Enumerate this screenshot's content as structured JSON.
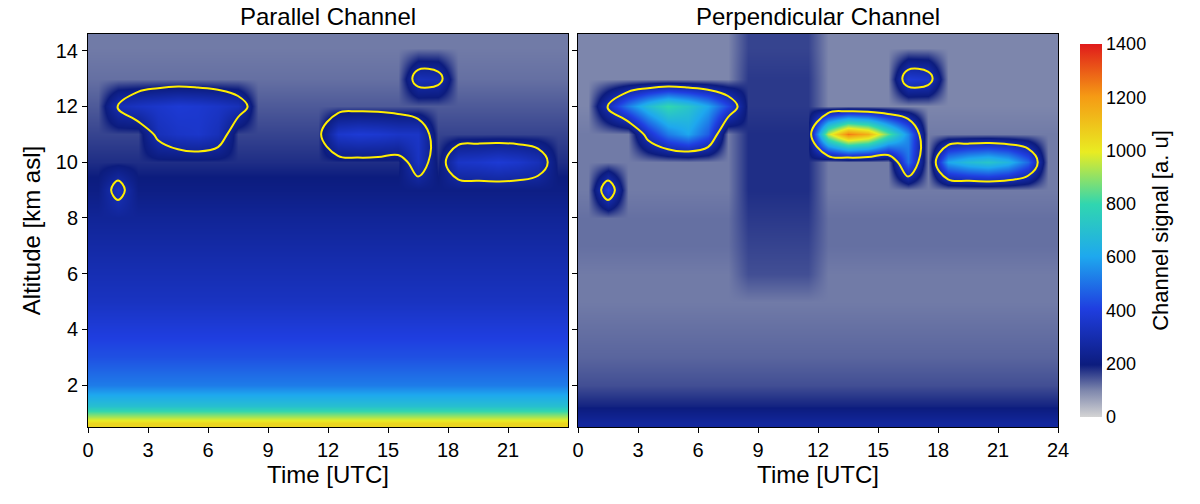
{
  "chart_data": [
    {
      "type": "heatmap",
      "title": "Parallel Channel",
      "x_label": "Time [UTC]",
      "y_label": "Altitude [km asl]",
      "x": [
        0.5,
        1.5,
        2.5,
        3.5,
        4.5,
        5.5,
        6.5,
        7.5,
        8.5,
        9.5,
        10.5,
        11.5,
        12.5,
        13.5,
        14.5,
        15.5,
        16.5,
        17.5,
        18.5,
        19.5,
        20.5,
        21.5,
        22.5,
        23.5
      ],
      "y": [
        0.65,
        1.25,
        2,
        3,
        4,
        5,
        6,
        7,
        8,
        9,
        10,
        11,
        12,
        13,
        14.1
      ],
      "z": [
        [
          1050,
          1050,
          1050,
          1050,
          1050,
          1050,
          1050,
          1050,
          1050,
          1050,
          1050,
          1050,
          1050,
          1050,
          1050,
          1050,
          1050,
          1050,
          1050,
          1050,
          1050,
          1050,
          1050,
          1050
        ],
        [
          700,
          700,
          700,
          700,
          700,
          700,
          700,
          700,
          700,
          700,
          700,
          700,
          700,
          700,
          700,
          700,
          700,
          700,
          700,
          700,
          700,
          700,
          700,
          700
        ],
        [
          520,
          520,
          520,
          520,
          520,
          520,
          520,
          520,
          520,
          520,
          520,
          520,
          520,
          520,
          520,
          520,
          520,
          520,
          520,
          520,
          520,
          520,
          520,
          520
        ],
        [
          440,
          440,
          440,
          440,
          440,
          440,
          440,
          440,
          440,
          440,
          440,
          440,
          440,
          440,
          440,
          440,
          440,
          440,
          440,
          440,
          440,
          440,
          440,
          440
        ],
        [
          390,
          390,
          390,
          390,
          390,
          390,
          390,
          390,
          390,
          390,
          390,
          390,
          390,
          390,
          390,
          390,
          390,
          390,
          390,
          390,
          390,
          390,
          390,
          390
        ],
        [
          340,
          340,
          340,
          340,
          340,
          340,
          340,
          340,
          340,
          340,
          340,
          340,
          340,
          340,
          340,
          340,
          340,
          340,
          340,
          340,
          340,
          340,
          340,
          340
        ],
        [
          310,
          310,
          310,
          310,
          310,
          310,
          310,
          310,
          310,
          310,
          310,
          310,
          310,
          310,
          310,
          310,
          310,
          310,
          310,
          310,
          310,
          310,
          310,
          310
        ],
        [
          280,
          280,
          280,
          280,
          280,
          280,
          280,
          280,
          280,
          280,
          280,
          280,
          280,
          280,
          280,
          280,
          280,
          280,
          280,
          280,
          280,
          280,
          280,
          280
        ],
        [
          250,
          250,
          250,
          250,
          250,
          250,
          250,
          250,
          250,
          250,
          250,
          250,
          250,
          250,
          250,
          250,
          250,
          250,
          250,
          250,
          250,
          250,
          250,
          250
        ],
        [
          210,
          330,
          210,
          210,
          210,
          210,
          210,
          210,
          210,
          210,
          210,
          210,
          210,
          210,
          210,
          210,
          210,
          210,
          210,
          210,
          210,
          210,
          210,
          210
        ],
        [
          180,
          180,
          180,
          180,
          180,
          180,
          180,
          180,
          180,
          180,
          180,
          180,
          180,
          180,
          180,
          180,
          340,
          180,
          350,
          360,
          380,
          360,
          320,
          180
        ],
        [
          160,
          160,
          160,
          320,
          350,
          360,
          320,
          160,
          160,
          160,
          160,
          160,
          360,
          380,
          370,
          350,
          350,
          160,
          160,
          160,
          160,
          160,
          160,
          160
        ],
        [
          140,
          310,
          340,
          360,
          380,
          370,
          350,
          320,
          140,
          140,
          140,
          140,
          140,
          140,
          140,
          140,
          140,
          140,
          140,
          140,
          140,
          140,
          140,
          140
        ],
        [
          120,
          120,
          120,
          120,
          120,
          120,
          120,
          120,
          120,
          120,
          120,
          120,
          120,
          120,
          120,
          120,
          320,
          310,
          120,
          120,
          120,
          120,
          120,
          120
        ],
        [
          110,
          110,
          110,
          110,
          110,
          110,
          110,
          110,
          110,
          110,
          110,
          110,
          110,
          110,
          110,
          110,
          110,
          110,
          110,
          110,
          110,
          110,
          110,
          110
        ]
      ],
      "xlim": [
        0,
        24
      ],
      "xticks": [
        0,
        3,
        6,
        9,
        12,
        15,
        18,
        21
      ],
      "ylim": [
        0.5,
        14.6
      ],
      "yticks": [
        2,
        4,
        6,
        8,
        10,
        12,
        14
      ]
    },
    {
      "type": "heatmap",
      "title": "Perpendicular Channel",
      "x_label": "Time [UTC]",
      "x": [
        0.5,
        1.5,
        2.5,
        3.5,
        4.5,
        5.5,
        6.5,
        7.5,
        8.5,
        9.5,
        10.5,
        11.5,
        12.5,
        13.5,
        14.5,
        15.5,
        16.5,
        17.5,
        18.5,
        19.5,
        20.5,
        21.5,
        22.5,
        23.5
      ],
      "y": [
        0.65,
        1.25,
        2,
        3,
        4,
        5,
        6,
        7,
        8,
        9,
        10,
        11,
        12,
        13,
        14.1
      ],
      "z": [
        [
          260,
          260,
          260,
          260,
          260,
          260,
          260,
          260,
          260,
          260,
          260,
          260,
          260,
          260,
          260,
          260,
          260,
          260,
          260,
          260,
          260,
          260,
          260,
          260
        ],
        [
          190,
          190,
          190,
          190,
          190,
          190,
          190,
          190,
          190,
          190,
          190,
          190,
          190,
          190,
          190,
          190,
          190,
          190,
          190,
          190,
          190,
          190,
          190,
          190
        ],
        [
          150,
          150,
          150,
          150,
          150,
          150,
          150,
          150,
          150,
          150,
          150,
          150,
          150,
          150,
          150,
          150,
          150,
          150,
          150,
          150,
          150,
          150,
          150,
          150
        ],
        [
          130,
          130,
          130,
          130,
          130,
          130,
          130,
          130,
          130,
          130,
          130,
          130,
          130,
          130,
          130,
          130,
          130,
          130,
          130,
          130,
          130,
          130,
          130,
          130
        ],
        [
          120,
          120,
          120,
          120,
          120,
          120,
          120,
          120,
          120,
          120,
          120,
          120,
          120,
          120,
          120,
          120,
          120,
          120,
          120,
          120,
          120,
          120,
          120,
          120
        ],
        [
          110,
          110,
          110,
          110,
          110,
          110,
          110,
          110,
          110,
          110,
          110,
          110,
          110,
          110,
          110,
          110,
          110,
          110,
          110,
          110,
          110,
          110,
          110,
          110
        ],
        [
          110,
          110,
          110,
          110,
          110,
          110,
          110,
          110,
          150,
          150,
          150,
          150,
          110,
          110,
          110,
          110,
          110,
          110,
          110,
          110,
          110,
          110,
          110,
          110
        ],
        [
          120,
          120,
          120,
          120,
          120,
          120,
          120,
          120,
          160,
          160,
          160,
          160,
          120,
          120,
          120,
          120,
          120,
          120,
          120,
          120,
          120,
          120,
          120,
          120
        ],
        [
          120,
          120,
          120,
          120,
          120,
          120,
          120,
          120,
          170,
          170,
          170,
          170,
          120,
          120,
          120,
          120,
          120,
          120,
          120,
          120,
          120,
          120,
          120,
          120
        ],
        [
          110,
          400,
          110,
          110,
          110,
          110,
          110,
          110,
          180,
          180,
          180,
          180,
          110,
          110,
          110,
          110,
          110,
          110,
          110,
          110,
          110,
          110,
          110,
          110
        ],
        [
          110,
          110,
          110,
          110,
          110,
          110,
          110,
          110,
          180,
          180,
          180,
          180,
          110,
          110,
          110,
          110,
          500,
          110,
          600,
          680,
          720,
          650,
          480,
          110
        ],
        [
          110,
          110,
          110,
          350,
          520,
          600,
          460,
          110,
          180,
          180,
          180,
          180,
          950,
          1250,
          1150,
          850,
          550,
          110,
          110,
          110,
          110,
          110,
          110,
          110
        ],
        [
          100,
          320,
          520,
          680,
          800,
          720,
          600,
          420,
          170,
          170,
          170,
          170,
          100,
          100,
          100,
          100,
          100,
          100,
          100,
          100,
          100,
          100,
          100,
          100
        ],
        [
          100,
          100,
          100,
          100,
          100,
          100,
          100,
          100,
          170,
          170,
          170,
          170,
          100,
          100,
          100,
          100,
          380,
          360,
          100,
          100,
          100,
          100,
          100,
          100
        ],
        [
          100,
          100,
          100,
          100,
          100,
          100,
          100,
          100,
          160,
          160,
          160,
          160,
          100,
          100,
          100,
          100,
          100,
          100,
          100,
          100,
          100,
          100,
          100,
          100
        ]
      ],
      "xlim": [
        0,
        24
      ],
      "xticks": [
        0,
        3,
        6,
        9,
        12,
        15,
        18,
        21,
        24
      ],
      "ylim": [
        0.5,
        14.6
      ],
      "yticks": [
        2,
        4,
        6,
        8,
        10,
        12,
        14
      ],
      "tick_labels": "x",
      "contour_level": 300,
      "colorbar_label": "Channel signal [a. u]",
      "colorbar_range": [
        0,
        1400
      ],
      "colorbar_ticks": [
        0,
        200,
        400,
        600,
        800,
        1000,
        1200,
        1400
      ]
    }
  ]
}
